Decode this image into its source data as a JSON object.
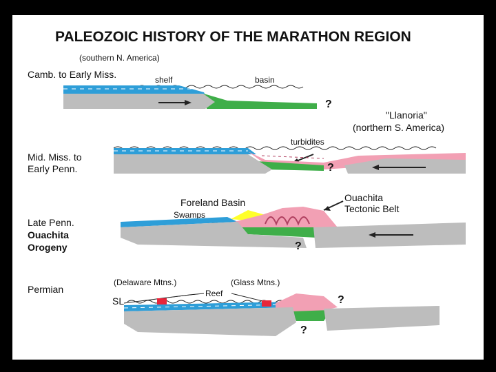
{
  "title": "PALEOZOIC HISTORY OF THE MARATHON REGION",
  "subtitle": "(southern N. America)",
  "stages": [
    {
      "label_lines": [
        "Camb. to Early Miss."
      ]
    },
    {
      "label_lines": [
        "Mid. Miss. to",
        "Early Penn."
      ]
    },
    {
      "label_lines": [
        "Late Penn.",
        "Ouachita",
        "Orogeny"
      ]
    },
    {
      "label_lines": [
        "Permian"
      ]
    }
  ],
  "annotations": {
    "shelf": "shelf",
    "basin": "basin",
    "llanoria": "\"Llanoria\"",
    "llanoria_sub": "(northern S. America)",
    "turbidites": "turbidites",
    "foreland_basin": "Foreland Basin",
    "swamps": "Swamps",
    "ouachita_1": "Ouachita",
    "ouachita_2": "Tectonic Belt",
    "delaware": "(Delaware Mtns.)",
    "glass": "(Glass Mtns.)",
    "reef": "Reef",
    "sl": "SL",
    "question": "?"
  },
  "colors": {
    "background": "#000000",
    "panel": "#ffffff",
    "crust": "#bdbdbd",
    "shelf_blue": "#2e9ed8",
    "basin_green": "#3fae49",
    "turbidite_pink": "#f2a0b4",
    "swamp_yellow": "#ffff2a",
    "reef_red": "#e8253a"
  }
}
